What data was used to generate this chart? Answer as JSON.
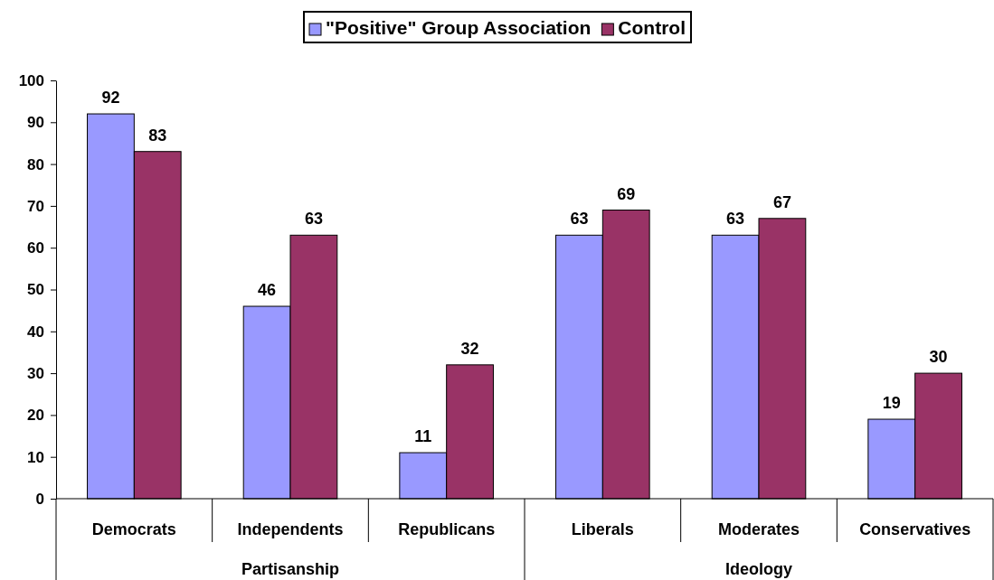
{
  "chart_data": {
    "type": "bar",
    "categories": [
      "Democrats",
      "Independents",
      "Republicans",
      "Liberals",
      "Moderates",
      "Conservatives"
    ],
    "series": [
      {
        "name": "\"Positive\" Group Association",
        "color": "#9999ff",
        "values": [
          92,
          46,
          11,
          63,
          63,
          19
        ]
      },
      {
        "name": "Control",
        "color": "#993366",
        "values": [
          83,
          63,
          32,
          69,
          67,
          30
        ]
      }
    ],
    "ylim": [
      0,
      100
    ],
    "yticks": [
      0,
      10,
      20,
      30,
      40,
      50,
      60,
      70,
      80,
      90,
      100
    ],
    "data_labels": true,
    "legend": "top",
    "grid": false,
    "annotations": [
      "Partisanship",
      "Ideology"
    ]
  }
}
